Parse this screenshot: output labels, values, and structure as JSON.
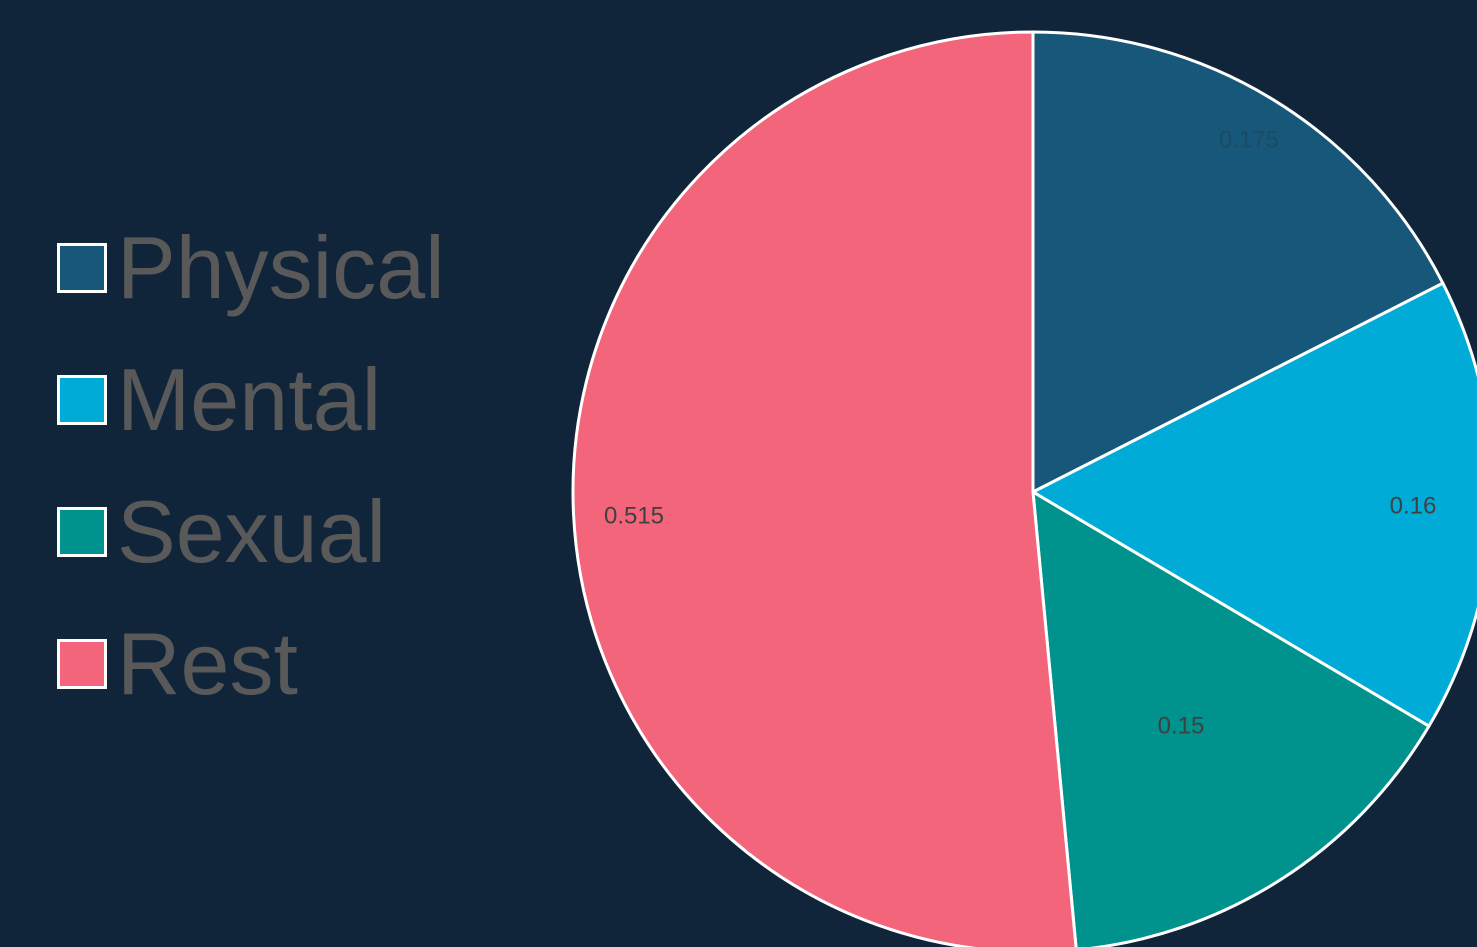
{
  "chart_data": {
    "type": "pie",
    "title": "",
    "legend_position": "left",
    "start_angle_deg": 0,
    "direction": "clockwise",
    "slices": [
      {
        "name": "Physical",
        "value": 0.175,
        "label": "0.175",
        "color": "#17587a",
        "label_color": "#1c4a63"
      },
      {
        "name": "Mental",
        "value": 0.16,
        "label": "0.16",
        "color": "#00acd7",
        "label_color": "#404040"
      },
      {
        "name": "Sexual",
        "value": 0.15,
        "label": "0.15",
        "color": "#00928d",
        "label_color": "#404040"
      },
      {
        "name": "Rest",
        "value": 0.515,
        "label": "0.515",
        "color": "#f2657b",
        "label_color": "#404040"
      }
    ],
    "slice_border_color": "#ffffff"
  },
  "legend": {
    "text_color": "#595959",
    "items": [
      {
        "label": "Physical",
        "color": "#17587a"
      },
      {
        "label": "Mental",
        "color": "#00acd7"
      },
      {
        "label": "Sexual",
        "color": "#00928d"
      },
      {
        "label": "Rest",
        "color": "#f2657b"
      }
    ]
  }
}
